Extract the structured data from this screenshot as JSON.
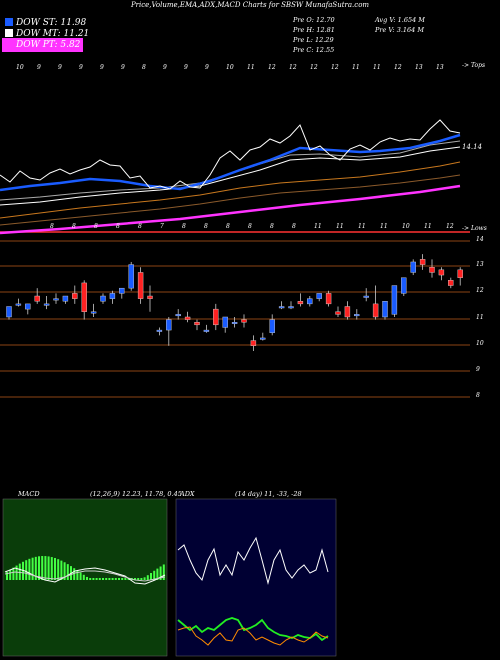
{
  "header": {
    "title": "Price,Volume,EMA,ADX,MACD Charts for SBSW MunafaSutra.com"
  },
  "legend": [
    {
      "label": "DOW ST:",
      "value": "11.98",
      "color": "#1a5cff"
    },
    {
      "label": "DOW MT:",
      "value": "11.21",
      "color": "#ffffff"
    },
    {
      "label": "DOW PT:",
      "value": "5.82",
      "color": "#ff33ff"
    }
  ],
  "stats": {
    "o": "Pre   O: 12.70",
    "h": "Pre   H: 12.81",
    "l": "Pre   L: 12.29",
    "c": "Pre   C: 12.55",
    "avgv": "Avg V: 1.654   M",
    "prev": "Pre   V: 3.164   M"
  },
  "ema_panel": {
    "top_right": "-> Tops",
    "price_label": "14.14",
    "bottom_right": "-> Lows",
    "top_numbers": [
      "10",
      "9",
      "9",
      "9",
      "9",
      "9",
      "8",
      "9",
      "9",
      "9",
      "10",
      "11",
      "12",
      "12",
      "12",
      "12",
      "11",
      "11",
      "12",
      "13",
      "13"
    ],
    "bottom_numbers": [
      "8",
      "8",
      "8",
      "8",
      "8",
      "7",
      "8",
      "8",
      "8",
      "8",
      "8",
      "8",
      "11",
      "11",
      "11",
      "11",
      "10",
      "11",
      "12"
    ]
  },
  "price_axis": [
    "14",
    "13",
    "12",
    "11",
    "10",
    "9",
    "8"
  ],
  "macd": {
    "label": "MACD",
    "params": "(12,26,9) 12.23, 11.78, 0.45"
  },
  "adx": {
    "label": "ADX",
    "params": "(14 day) 11, -33, -28"
  },
  "chart_data": {
    "type": "candlestick",
    "title": "Price,Volume,EMA,ADX,MACD Charts for SBSW MunafaSutra.com",
    "ylim": [
      7.5,
      14.2
    ],
    "up_color": "#1a5cff",
    "down_color": "#ff2222",
    "candles": [
      {
        "o": 11.1,
        "h": 11.5,
        "c": 11.5,
        "l": 11.0
      },
      {
        "o": 11.6,
        "h": 11.8,
        "c": 11.6,
        "l": 11.5
      },
      {
        "o": 11.4,
        "h": 11.6,
        "c": 11.6,
        "l": 11.2
      },
      {
        "o": 11.9,
        "h": 12.2,
        "c": 11.7,
        "l": 11.6
      },
      {
        "o": 11.6,
        "h": 11.9,
        "c": 11.6,
        "l": 11.4
      },
      {
        "o": 11.8,
        "h": 12.0,
        "c": 11.8,
        "l": 11.6
      },
      {
        "o": 11.7,
        "h": 11.9,
        "c": 11.9,
        "l": 11.6
      },
      {
        "o": 12.0,
        "h": 12.3,
        "c": 11.8,
        "l": 11.6
      },
      {
        "o": 12.4,
        "h": 12.5,
        "c": 11.3,
        "l": 11.0
      },
      {
        "o": 11.3,
        "h": 11.6,
        "c": 11.3,
        "l": 11.1
      },
      {
        "o": 11.7,
        "h": 12.0,
        "c": 11.9,
        "l": 11.6
      },
      {
        "o": 11.8,
        "h": 12.1,
        "c": 12.0,
        "l": 11.6
      },
      {
        "o": 12.0,
        "h": 12.2,
        "c": 12.2,
        "l": 11.8
      },
      {
        "o": 12.2,
        "h": 13.2,
        "c": 13.1,
        "l": 12.1
      },
      {
        "o": 12.8,
        "h": 13.0,
        "c": 11.8,
        "l": 11.6
      },
      {
        "o": 11.9,
        "h": 12.3,
        "c": 11.8,
        "l": 11.3
      },
      {
        "o": 10.6,
        "h": 10.7,
        "c": 10.6,
        "l": 10.4
      },
      {
        "o": 10.6,
        "h": 11.1,
        "c": 11.0,
        "l": 10.0
      },
      {
        "o": 11.2,
        "h": 11.4,
        "c": 11.2,
        "l": 11.0
      },
      {
        "o": 11.1,
        "h": 11.3,
        "c": 11.0,
        "l": 10.9
      },
      {
        "o": 10.9,
        "h": 11.0,
        "c": 10.8,
        "l": 10.6
      },
      {
        "o": 10.6,
        "h": 10.8,
        "c": 10.6,
        "l": 10.5
      },
      {
        "o": 11.4,
        "h": 11.6,
        "c": 10.8,
        "l": 10.6
      },
      {
        "o": 10.7,
        "h": 11.1,
        "c": 11.1,
        "l": 10.5
      },
      {
        "o": 10.9,
        "h": 11.1,
        "c": 10.9,
        "l": 10.7
      },
      {
        "o": 11.0,
        "h": 11.2,
        "c": 10.9,
        "l": 10.7
      },
      {
        "o": 10.2,
        "h": 10.4,
        "c": 10.0,
        "l": 9.8
      },
      {
        "o": 10.3,
        "h": 10.5,
        "c": 10.3,
        "l": 10.2
      },
      {
        "o": 10.5,
        "h": 11.2,
        "c": 11.0,
        "l": 10.4
      },
      {
        "o": 11.5,
        "h": 11.7,
        "c": 11.5,
        "l": 11.4
      },
      {
        "o": 11.5,
        "h": 11.7,
        "c": 11.5,
        "l": 11.4
      },
      {
        "o": 11.7,
        "h": 12.0,
        "c": 11.6,
        "l": 11.5
      },
      {
        "o": 11.6,
        "h": 11.9,
        "c": 11.8,
        "l": 11.5
      },
      {
        "o": 11.8,
        "h": 12.0,
        "c": 12.0,
        "l": 11.7
      },
      {
        "o": 12.0,
        "h": 12.1,
        "c": 11.6,
        "l": 11.5
      },
      {
        "o": 11.3,
        "h": 11.5,
        "c": 11.2,
        "l": 11.1
      },
      {
        "o": 11.5,
        "h": 11.7,
        "c": 11.1,
        "l": 11.0
      },
      {
        "o": 11.2,
        "h": 11.4,
        "c": 11.2,
        "l": 11.0
      },
      {
        "o": 11.9,
        "h": 12.2,
        "c": 11.9,
        "l": 11.7
      },
      {
        "o": 11.6,
        "h": 12.3,
        "c": 11.1,
        "l": 11.0
      },
      {
        "o": 11.1,
        "h": 11.7,
        "c": 11.7,
        "l": 11.0
      },
      {
        "o": 11.2,
        "h": 12.3,
        "c": 12.3,
        "l": 11.1
      },
      {
        "o": 12.0,
        "h": 12.6,
        "c": 12.6,
        "l": 11.9
      },
      {
        "o": 12.8,
        "h": 13.3,
        "c": 13.2,
        "l": 12.7
      },
      {
        "o": 13.3,
        "h": 13.5,
        "c": 13.1,
        "l": 12.9
      },
      {
        "o": 13.0,
        "h": 13.3,
        "c": 12.8,
        "l": 12.6
      },
      {
        "o": 12.9,
        "h": 13.0,
        "c": 12.7,
        "l": 12.5
      },
      {
        "o": 12.5,
        "h": 12.6,
        "c": 12.3,
        "l": 12.2
      },
      {
        "o": 12.9,
        "h": 13.0,
        "c": 12.6,
        "l": 12.3
      }
    ]
  }
}
